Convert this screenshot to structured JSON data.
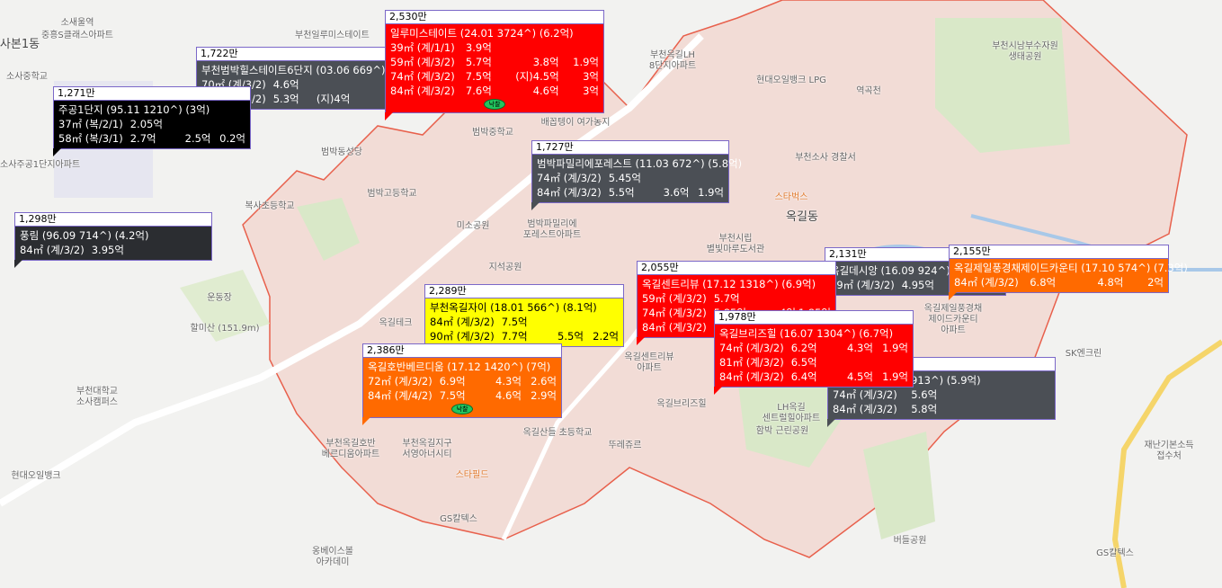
{
  "map_labels": [
    "사본1동",
    "소새울역",
    "중흥S클래스아파트",
    "소사중학교",
    "소사주공1단지아파트",
    "부천일루미스테이트",
    "부천옥길LH 8단지아파트",
    "현대오일뱅크 LPG",
    "역곡천",
    "부천시남부수자원 생태공원",
    "범박동성당",
    "범박중학교",
    "배꼽텡이 여가농지",
    "범박고등학교",
    "복사초등학교",
    "부천소사 경찰서",
    "스타벅스",
    "옥길동",
    "부천시립 별빛마루도서관",
    "미소공원",
    "범박파밀리에 포레스트아파트",
    "지석공원",
    "할미산 (151.9m)",
    "운동장",
    "부천대학교 소사캠퍼스",
    "현대오일뱅크",
    "부천옥길호반 베르디움아파트",
    "부천옥길지구 서영아너시티",
    "스타필드",
    "옥길산들 초등학교",
    "뚜레쥬르",
    "옥길브리즈힐",
    "함박 근린공원",
    "LH옥길 센트럴힐아파트",
    "옥길제일풍경채 제이드카운티 아파트",
    "SK엔크린",
    "재난기본소득 접수처",
    "GS칼텍스",
    "버들공원",
    "GS칼텍스",
    "옹베이스볼 아카데미",
    "옥길센트리뷰 아파트",
    "옥길테크"
  ],
  "colors": {
    "red": "#ff0000",
    "orange": "#ff6a00",
    "yellow": "#ffff00",
    "gray": "#4b4f55",
    "black": "#000000",
    "dark": "#2b2d31",
    "border": "#7b68c8",
    "district_border": "#e8604c"
  },
  "boxes": [
    {
      "price": "1,722만",
      "name": "부천범박힐스테이트6단지 (03.06 669^) (5억)",
      "color": "gray",
      "rows": [
        [
          "70㎡ (계/3/2)",
          "4.6억",
          "",
          ""
        ],
        [
          "84㎡ (계/3/2)",
          "5.3억",
          "(지)4억",
          ""
        ]
      ]
    },
    {
      "price": "1,271만",
      "name": "주공1단지 (95.11 1210^) (3억)",
      "color": "black",
      "rows": [
        [
          "37㎡ (복/2/1)",
          "2.05억",
          "",
          ""
        ],
        [
          "58㎡ (복/3/1)",
          "2.7억",
          "2.5억",
          "0.2억"
        ]
      ]
    },
    {
      "price": "2,530만",
      "name": "일루미스테이트 (24.01 3724^) (6.2억)",
      "color": "red",
      "badge": "낙찰",
      "rows": [
        [
          "39㎡ (계/1/1)",
          "3.9억",
          "",
          ""
        ],
        [
          "59㎡ (계/3/2)",
          "5.7억",
          "3.8억",
          "1.9억"
        ],
        [
          "74㎡ (계/3/2)",
          "7.5억",
          "(지)4.5억",
          "3억"
        ],
        [
          "84㎡ (계/3/2)",
          "7.6억",
          "4.6억",
          "3억"
        ]
      ]
    },
    {
      "price": "1,727만",
      "name": "범박파밀리에포레스트 (11.03 672^) (5.8억)",
      "color": "gray",
      "rows": [
        [
          "74㎡ (계/3/2)",
          "5.45억",
          "",
          ""
        ],
        [
          "84㎡ (계/3/2)",
          "5.5억",
          "3.6억",
          "1.9억"
        ]
      ]
    },
    {
      "price": "1,298만",
      "name": "풍림 (96.09 714^) (4.2억)",
      "color": "dark",
      "rows": [
        [
          "84㎡ (계/3/2)",
          "3.95억",
          "",
          ""
        ]
      ]
    },
    {
      "price": "2,289만",
      "name": "부천옥길자이 (18.01 566^) (8.1억)",
      "color": "yellow",
      "rows": [
        [
          "84㎡ (계/3/2)",
          "7.5억",
          "",
          ""
        ],
        [
          "90㎡ (계/3/2)",
          "7.7억",
          "5.5억",
          "2.2억"
        ]
      ]
    },
    {
      "price": "2,386만",
      "name": "옥길호반베르디움 (17.12 1420^) (7억)",
      "color": "orange",
      "badge": "낙찰",
      "rows": [
        [
          "72㎡ (계/3/2)",
          "6.9억",
          "4.3억",
          "2.6억"
        ],
        [
          "84㎡ (계/4/2)",
          "7.5억",
          "4.6억",
          "2.9억"
        ]
      ]
    },
    {
      "price": "2,131만",
      "name": "옥길데시앙 (16.09 924^) (5.3억)",
      "color": "gray",
      "rows": [
        [
          "59㎡ (계/3/2)",
          "4.95억",
          "",
          ""
        ]
      ]
    },
    {
      "price": "2,155만",
      "name": "옥길제일풍경채제이드카운티 (17.10 574^) (7.3억)",
      "color": "orange",
      "rows": [
        [
          "84㎡ (계/3/2)",
          "6.8억",
          "4.8억",
          "2억"
        ]
      ]
    },
    {
      "price": "2,055만",
      "name": "옥길센트리뷰 (17.12 1318^) (6.9억)",
      "color": "red",
      "rows": [
        [
          "59㎡ (계/3/2)",
          "5.7억",
          "",
          ""
        ],
        [
          "74㎡ (계/3/2)",
          "5.85억",
          "4억",
          "1.85억"
        ],
        [
          "84㎡ (계/3/2)",
          "",
          "",
          ""
        ]
      ]
    },
    {
      "price": "",
      "name": "센트럴힐 (17.07 913^) (5.9억)",
      "color": "gray",
      "rows": [
        [
          "74㎡ (계/3/2)",
          "5.6억",
          "",
          ""
        ],
        [
          "84㎡ (계/3/2)",
          "5.8억",
          "",
          ""
        ]
      ]
    },
    {
      "price": "1,978만",
      "name": "옥길브리즈힐 (16.07 1304^) (6.7억)",
      "color": "red",
      "rows": [
        [
          "74㎡ (계/3/2)",
          "6.2억",
          "4.3억",
          "1.9억"
        ],
        [
          "81㎡ (계/3/2)",
          "6.5억",
          "",
          ""
        ],
        [
          "84㎡ (계/3/2)",
          "6.4억",
          "4.5억",
          "1.9억"
        ]
      ]
    }
  ]
}
